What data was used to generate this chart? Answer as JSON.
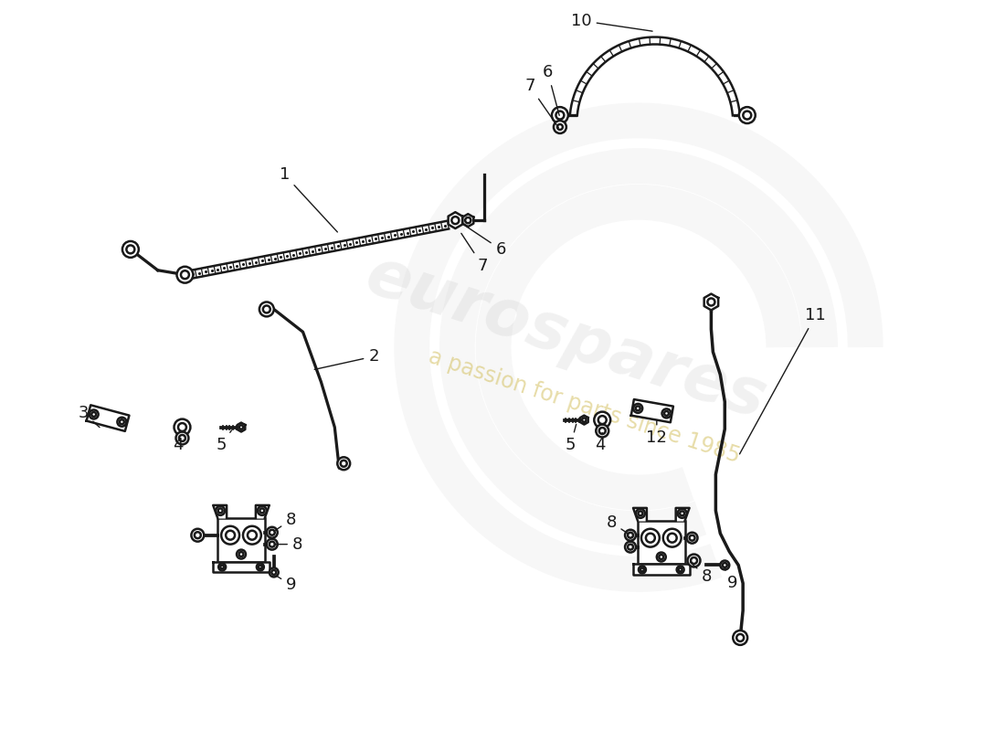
{
  "background_color": "#ffffff",
  "line_color": "#1a1a1a",
  "line_width": 1.8,
  "watermark_text1": "eurospares",
  "watermark_text2": "a passion for parts since 1985",
  "eurospares_logo_color": "#cccccc",
  "watermark_color": "#d4c060",
  "label_fontsize": 13
}
